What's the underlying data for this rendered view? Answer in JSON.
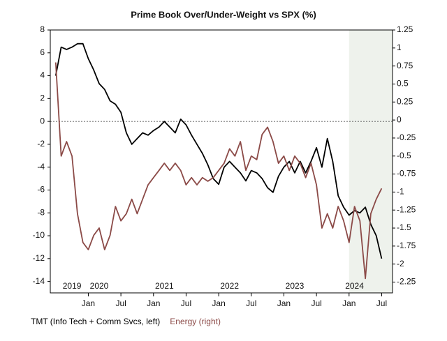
{
  "chart_data": {
    "type": "line",
    "title": "Prime Book Over/Under-Weight vs SPX (%)",
    "x": [
      "2019-07",
      "2019-08",
      "2019-09",
      "2019-10",
      "2019-11",
      "2019-12",
      "2020-01",
      "2020-02",
      "2020-03",
      "2020-04",
      "2020-05",
      "2020-06",
      "2020-07",
      "2020-08",
      "2020-09",
      "2020-10",
      "2020-11",
      "2020-12",
      "2021-01",
      "2021-02",
      "2021-03",
      "2021-04",
      "2021-05",
      "2021-06",
      "2021-07",
      "2021-08",
      "2021-09",
      "2021-10",
      "2021-11",
      "2021-12",
      "2022-01",
      "2022-02",
      "2022-03",
      "2022-04",
      "2022-05",
      "2022-06",
      "2022-07",
      "2022-08",
      "2022-09",
      "2022-10",
      "2022-11",
      "2022-12",
      "2023-01",
      "2023-02",
      "2023-03",
      "2023-04",
      "2023-05",
      "2023-06",
      "2023-07",
      "2023-08",
      "2023-09",
      "2023-10",
      "2023-11",
      "2023-12",
      "2024-01",
      "2024-02",
      "2024-03",
      "2024-04",
      "2024-05",
      "2024-06",
      "2024-07"
    ],
    "series": [
      {
        "name": "TMT (Info Tech + Comm Svcs, left)",
        "color": "#000000",
        "axis": "y",
        "values": [
          4,
          6.5,
          6.3,
          6.5,
          6.8,
          6.8,
          5.5,
          4.5,
          3.3,
          2.8,
          1.8,
          1.5,
          0.8,
          -1,
          -2,
          -1.5,
          -1,
          -1.2,
          -0.8,
          -0.5,
          0,
          -0.5,
          -1,
          0.2,
          -0.3,
          -1.2,
          -2,
          -2.8,
          -3.8,
          -5,
          -5.5,
          -4,
          -3.5,
          -4,
          -4.5,
          -5.2,
          -4.3,
          -4.5,
          -5,
          -5.8,
          -6.2,
          -4.8,
          -4,
          -3.5,
          -4.5,
          -3.5,
          -4.5,
          -3.5,
          -2.3,
          -4,
          -1.5,
          -3.5,
          -6.5,
          -7.5,
          -8.2,
          -7.8,
          -8,
          -7.5,
          -9,
          -10,
          -12
        ]
      },
      {
        "name": "Energy (right)",
        "color": "#8b4a47",
        "axis": "y2",
        "values": [
          0.8,
          -0.5,
          -0.3,
          -0.5,
          -1.3,
          -1.7,
          -1.8,
          -1.6,
          -1.5,
          -1.8,
          -1.6,
          -1.2,
          -1.4,
          -1.3,
          -1.1,
          -1.3,
          -1.1,
          -0.9,
          -0.8,
          -0.7,
          -0.6,
          -0.7,
          -0.6,
          -0.7,
          -0.9,
          -0.8,
          -0.9,
          -0.8,
          -0.85,
          -0.8,
          -0.7,
          -0.6,
          -0.4,
          -0.5,
          -0.3,
          -0.7,
          -0.5,
          -0.55,
          -0.2,
          -0.1,
          -0.3,
          -0.6,
          -0.5,
          -0.7,
          -0.5,
          -0.6,
          -0.8,
          -0.6,
          -0.9,
          -1.5,
          -1.3,
          -1.5,
          -1.2,
          -1.4,
          -1.7,
          -1.2,
          -1.4,
          -2.2,
          -1.3,
          -1.1,
          -0.95
        ]
      }
    ],
    "xlim": [
      "2019-06",
      "2024-09"
    ],
    "xticks": [
      {
        "value": "2020-01",
        "label": "Jan"
      },
      {
        "value": "2020-07",
        "label": "Jul"
      },
      {
        "value": "2021-01",
        "label": "Jan"
      },
      {
        "value": "2021-07",
        "label": "Jul"
      },
      {
        "value": "2022-01",
        "label": "Jan"
      },
      {
        "value": "2022-07",
        "label": "Jul"
      },
      {
        "value": "2023-01",
        "label": "Jan"
      },
      {
        "value": "2023-07",
        "label": "Jul"
      },
      {
        "value": "2024-01",
        "label": "Jan"
      },
      {
        "value": "2024-07",
        "label": "Jul"
      }
    ],
    "year_labels": [
      {
        "value": "2019-10",
        "label": "2019"
      },
      {
        "value": "2020-03",
        "label": "2020"
      },
      {
        "value": "2021-03",
        "label": "2021"
      },
      {
        "value": "2022-03",
        "label": "2022"
      },
      {
        "value": "2023-03",
        "label": "2023"
      },
      {
        "value": "2024-02",
        "label": "2024"
      }
    ],
    "shade_from": "2024-01",
    "ylim": [
      -15,
      8
    ],
    "yticks": [
      8,
      6,
      4,
      2,
      0,
      -2,
      -4,
      -6,
      -8,
      -10,
      -12,
      -14
    ],
    "y2lim": [
      -2.4,
      1.25
    ],
    "y2ticks": [
      1.25,
      1,
      0.75,
      0.5,
      0.25,
      0,
      -0.25,
      -0.5,
      -0.75,
      -1,
      -1.25,
      -1.5,
      -1.75,
      -2,
      -2.25
    ],
    "zero_line": 0
  }
}
